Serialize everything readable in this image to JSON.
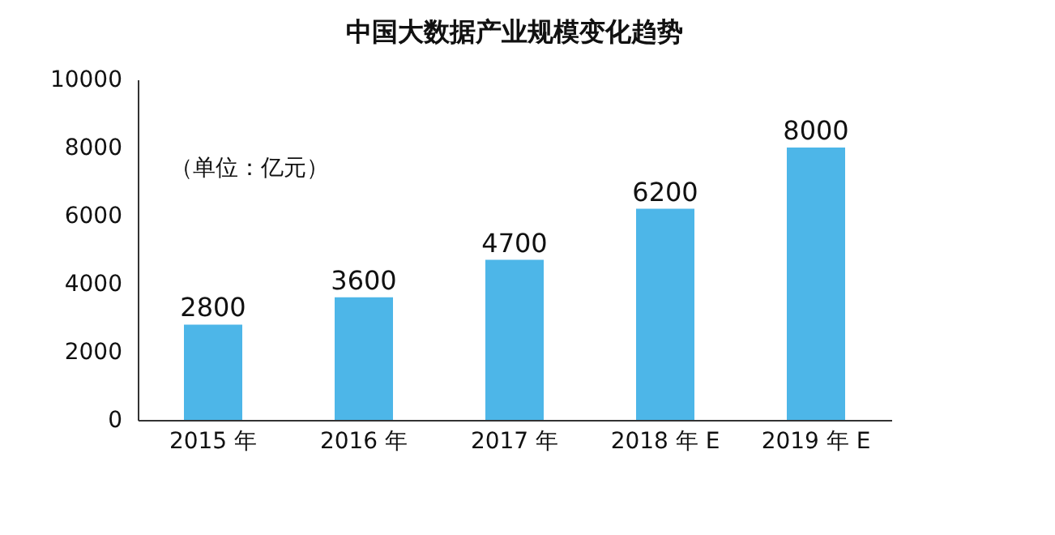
{
  "chart_data": {
    "type": "bar",
    "title": "中国大数据产业规模变化趋势",
    "categories": [
      "2015 年",
      "2016 年",
      "2017 年",
      "2018 年 E",
      "2019 年 E"
    ],
    "values": [
      2800,
      3600,
      4700,
      6200,
      8000
    ],
    "color": "#4db6e8",
    "ylim": [
      0,
      10000
    ],
    "yticks": [
      0,
      2000,
      4000,
      6000,
      8000,
      10000
    ],
    "grid": false,
    "data_labels": true,
    "annotations": [
      "（单位：亿元）"
    ]
  }
}
